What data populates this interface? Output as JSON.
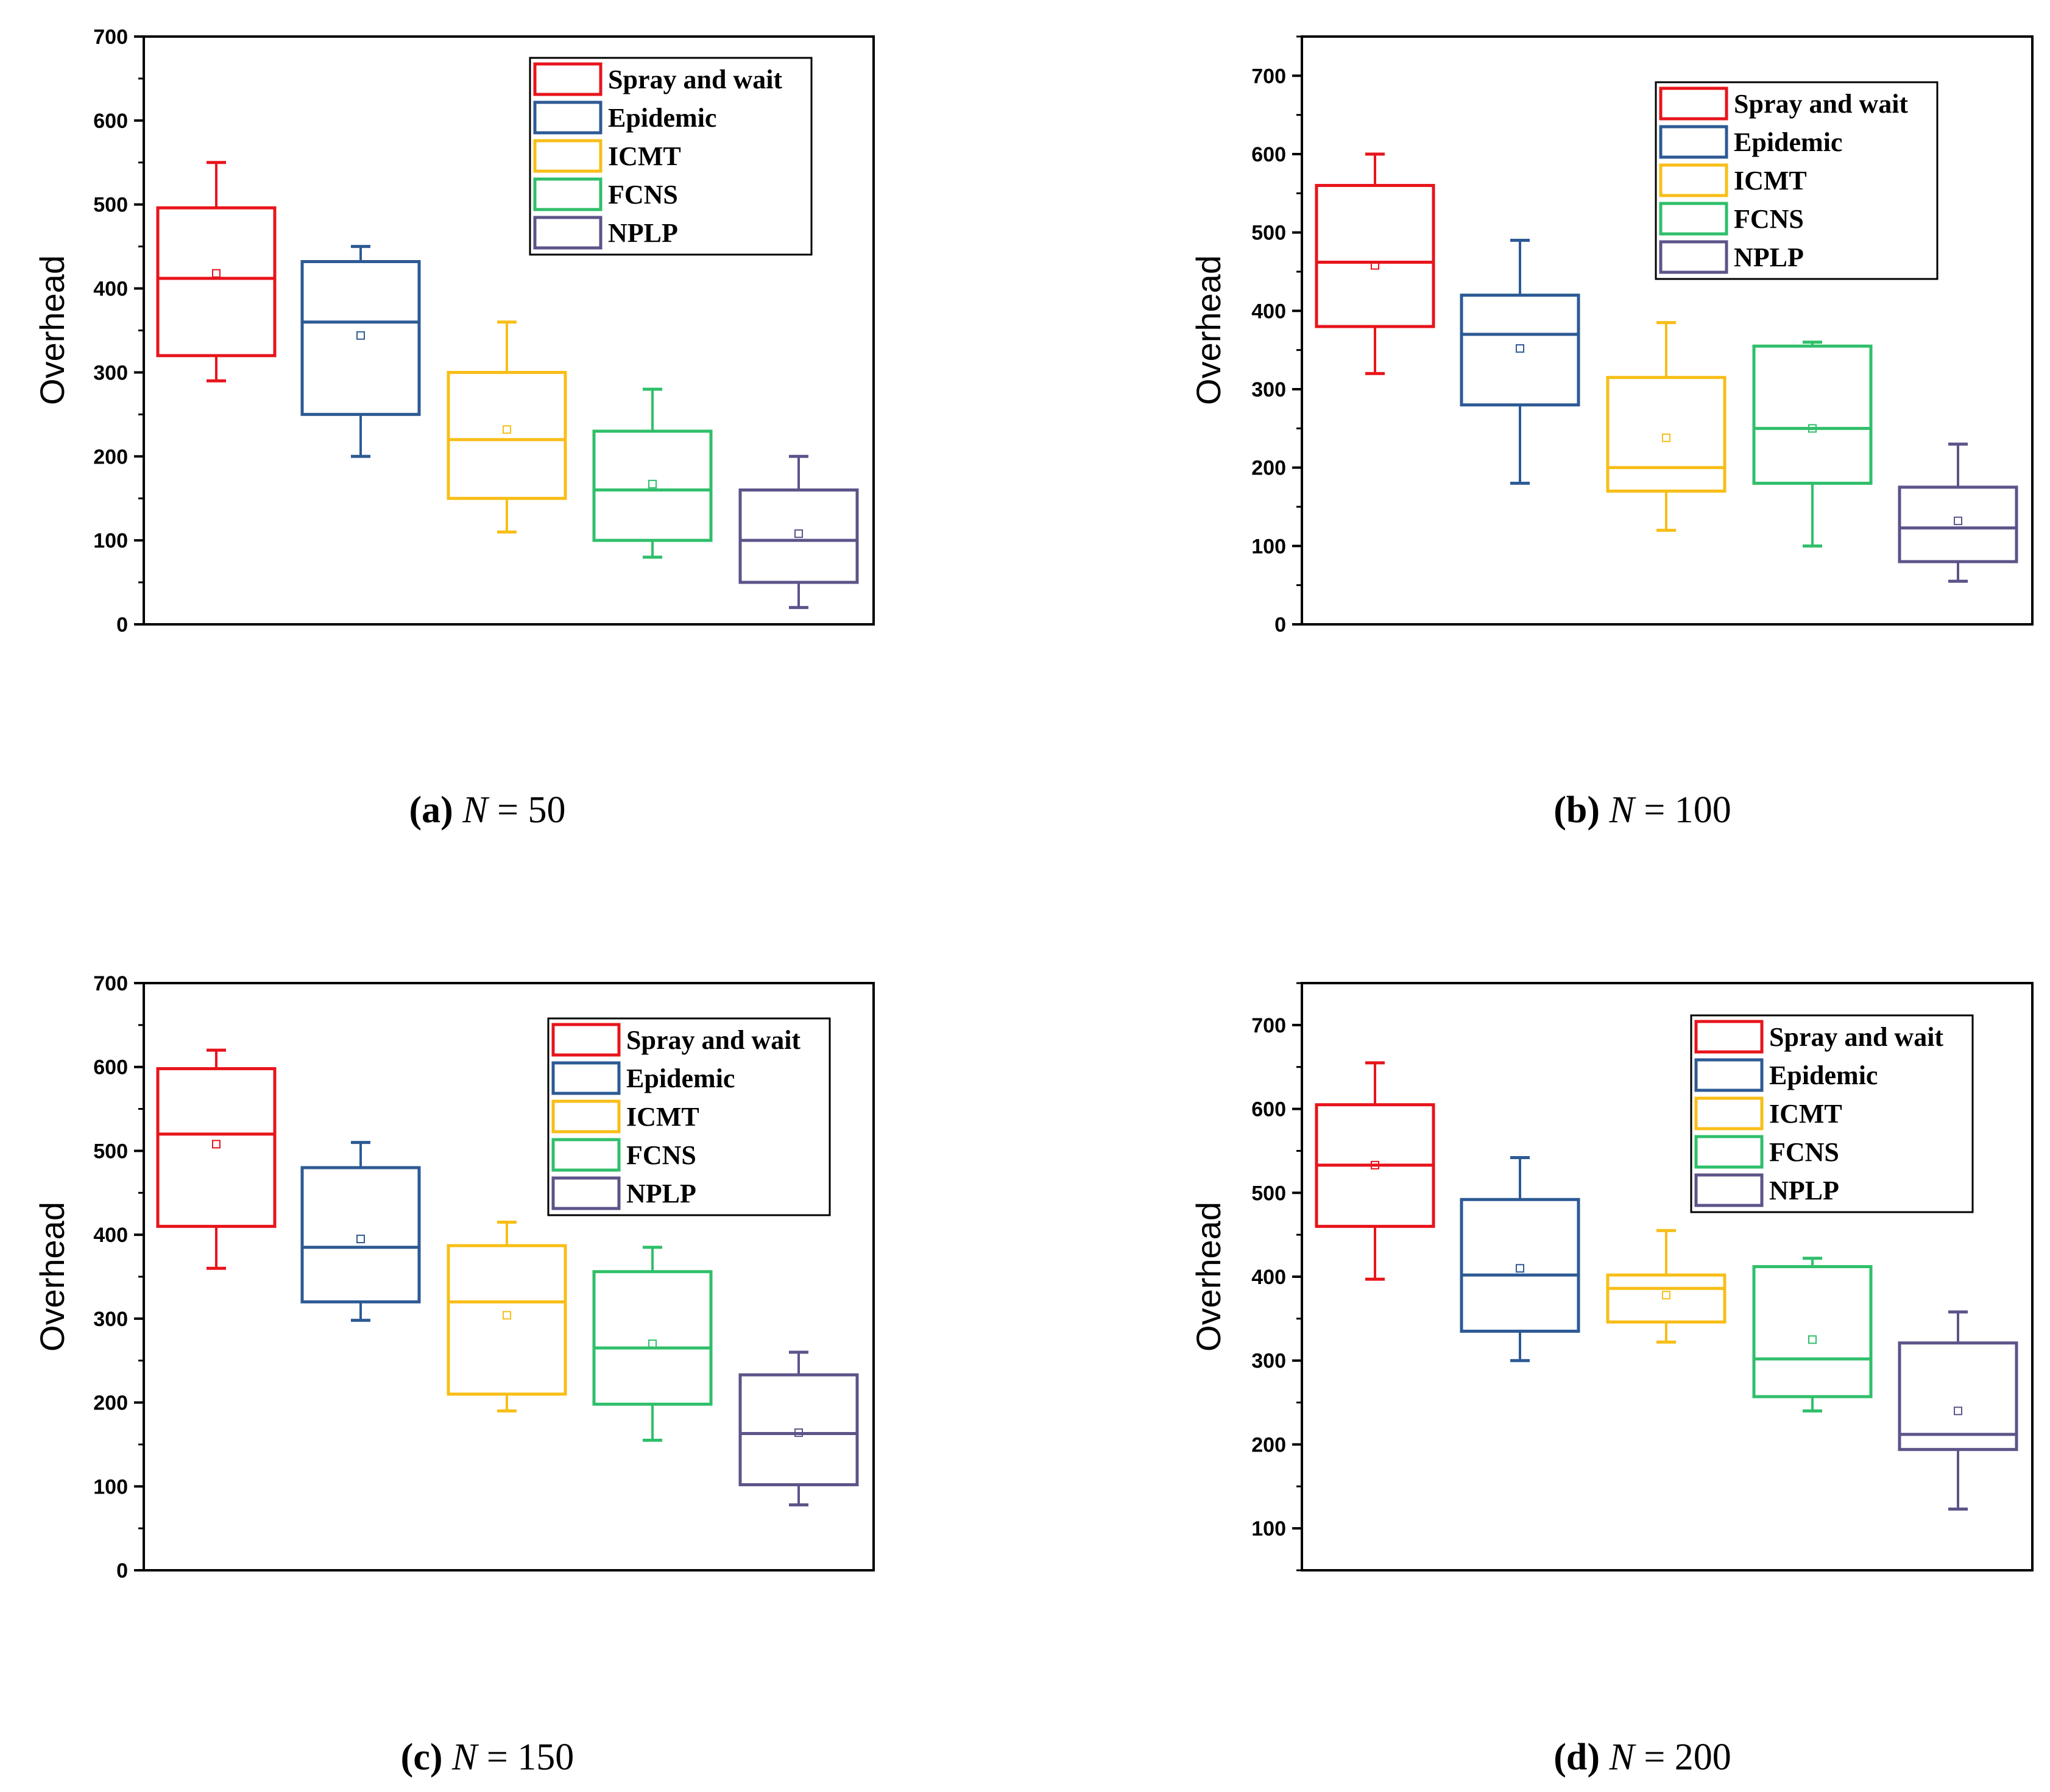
{
  "series_names": [
    "Spray and wait",
    "Epidemic",
    "ICMT",
    "FCNS",
    "NPLP"
  ],
  "colors": {
    "Spray and wait": "#e8141b",
    "Epidemic": "#2d5a94",
    "ICMT": "#f8be17",
    "FCNS": "#2fbf6a",
    "NPLP": "#5c5489"
  },
  "chart_data": [
    {
      "type": "box",
      "ylabel": "Overhead",
      "ylim": [
        0,
        700
      ],
      "yticks": [
        0,
        100,
        200,
        300,
        400,
        500,
        600,
        700
      ],
      "legend_position": "top-right",
      "caption": {
        "letter": "(a)",
        "var": "N",
        "rest": " = 50"
      },
      "series": [
        {
          "name": "Spray and wait",
          "whisker_low": 290,
          "q1": 320,
          "median": 412,
          "q3": 496,
          "whisker_high": 550,
          "mean": 418
        },
        {
          "name": "Epidemic",
          "whisker_low": 200,
          "q1": 250,
          "median": 360,
          "q3": 432,
          "whisker_high": 450,
          "mean": 344
        },
        {
          "name": "ICMT",
          "whisker_low": 110,
          "q1": 150,
          "median": 220,
          "q3": 300,
          "whisker_high": 360,
          "mean": 232
        },
        {
          "name": "FCNS",
          "whisker_low": 80,
          "q1": 100,
          "median": 160,
          "q3": 230,
          "whisker_high": 280,
          "mean": 167
        },
        {
          "name": "NPLP",
          "whisker_low": 20,
          "q1": 50,
          "median": 100,
          "q3": 160,
          "whisker_high": 200,
          "mean": 108
        }
      ]
    },
    {
      "type": "box",
      "ylabel": "Overhead",
      "ylim": [
        0,
        750
      ],
      "yticks": [
        0,
        100,
        200,
        300,
        400,
        500,
        600,
        700
      ],
      "legend_position": "top-right",
      "caption": {
        "letter": "(b)",
        "var": "N",
        "rest": " = 100"
      },
      "series": [
        {
          "name": "Spray and wait",
          "whisker_low": 320,
          "q1": 380,
          "median": 462,
          "q3": 560,
          "whisker_high": 600,
          "mean": 458
        },
        {
          "name": "Epidemic",
          "whisker_low": 180,
          "q1": 280,
          "median": 370,
          "q3": 420,
          "whisker_high": 490,
          "mean": 352
        },
        {
          "name": "ICMT",
          "whisker_low": 120,
          "q1": 170,
          "median": 200,
          "q3": 315,
          "whisker_high": 385,
          "mean": 238
        },
        {
          "name": "FCNS",
          "whisker_low": 100,
          "q1": 180,
          "median": 250,
          "q3": 355,
          "whisker_high": 360,
          "mean": 250
        },
        {
          "name": "NPLP",
          "whisker_low": 55,
          "q1": 80,
          "median": 123,
          "q3": 175,
          "whisker_high": 230,
          "mean": 132
        }
      ]
    },
    {
      "type": "box",
      "ylabel": "Overhead",
      "ylim": [
        0,
        700
      ],
      "yticks": [
        0,
        100,
        200,
        300,
        400,
        500,
        600,
        700
      ],
      "legend_position": "top-right",
      "caption": {
        "letter": "(c)",
        "var": "N",
        "rest": " = 150"
      },
      "series": [
        {
          "name": "Spray and wait",
          "whisker_low": 360,
          "q1": 410,
          "median": 520,
          "q3": 598,
          "whisker_high": 620,
          "mean": 508
        },
        {
          "name": "Epidemic",
          "whisker_low": 298,
          "q1": 320,
          "median": 385,
          "q3": 480,
          "whisker_high": 510,
          "mean": 395
        },
        {
          "name": "ICMT",
          "whisker_low": 190,
          "q1": 210,
          "median": 320,
          "q3": 387,
          "whisker_high": 415,
          "mean": 304
        },
        {
          "name": "FCNS",
          "whisker_low": 155,
          "q1": 198,
          "median": 265,
          "q3": 356,
          "whisker_high": 385,
          "mean": 270
        },
        {
          "name": "NPLP",
          "whisker_low": 78,
          "q1": 102,
          "median": 163,
          "q3": 233,
          "whisker_high": 260,
          "mean": 164
        }
      ]
    },
    {
      "type": "box",
      "ylabel": "Overhead",
      "ylim": [
        50,
        750
      ],
      "yticks": [
        100,
        200,
        300,
        400,
        500,
        600,
        700
      ],
      "legend_position": "top-right",
      "caption": {
        "letter": "(d)",
        "var": "N",
        "rest": " = 200"
      },
      "series": [
        {
          "name": "Spray and wait",
          "whisker_low": 397,
          "q1": 460,
          "median": 533,
          "q3": 605,
          "whisker_high": 655,
          "mean": 533
        },
        {
          "name": "Epidemic",
          "whisker_low": 300,
          "q1": 335,
          "median": 402,
          "q3": 492,
          "whisker_high": 542,
          "mean": 410
        },
        {
          "name": "ICMT",
          "whisker_low": 322,
          "q1": 346,
          "median": 386,
          "q3": 402,
          "whisker_high": 455,
          "mean": 378
        },
        {
          "name": "FCNS",
          "whisker_low": 240,
          "q1": 257,
          "median": 302,
          "q3": 412,
          "whisker_high": 422,
          "mean": 325
        },
        {
          "name": "NPLP",
          "whisker_low": 123,
          "q1": 194,
          "median": 212,
          "q3": 321,
          "whisker_high": 358,
          "mean": 240
        }
      ]
    }
  ]
}
